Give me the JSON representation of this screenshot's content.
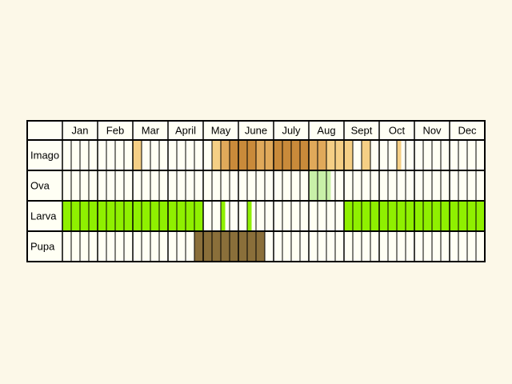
{
  "months": [
    "Jan",
    "Feb",
    "Mar",
    "April",
    "May",
    "June",
    "July",
    "Aug",
    "Sept",
    "Oct",
    "Nov",
    "Dec"
  ],
  "cells_per_month": 4,
  "colors": {
    "background": "#fcf8e8",
    "cell_empty": "#fffff4",
    "grid": "#000000",
    "imago_light": "#f5cf85",
    "imago_medium": "#e0a95a",
    "imago_dark": "#c98a3a",
    "ova": "#c8f0a8",
    "larva": "#8ff000",
    "pupa": "#8a6f3a"
  },
  "rows": [
    {
      "label": "Imago",
      "fills": [
        {
          "from": 8.0,
          "to": 9.0,
          "shade": "imago_light"
        },
        {
          "from": 17.0,
          "to": 18.0,
          "shade": "imago_light"
        },
        {
          "from": 18.0,
          "to": 19.0,
          "shade": "imago_medium"
        },
        {
          "from": 19.0,
          "to": 22.0,
          "shade": "imago_dark"
        },
        {
          "from": 22.0,
          "to": 24.0,
          "shade": "imago_medium"
        },
        {
          "from": 24.0,
          "to": 28.0,
          "shade": "imago_dark"
        },
        {
          "from": 28.0,
          "to": 30.0,
          "shade": "imago_medium"
        },
        {
          "from": 30.0,
          "to": 33.0,
          "shade": "imago_light"
        },
        {
          "from": 34.0,
          "to": 35.0,
          "shade": "imago_light"
        },
        {
          "from": 38.0,
          "to": 38.5,
          "shade": "imago_light"
        }
      ]
    },
    {
      "label": "Ova",
      "fills": [
        {
          "from": 28.0,
          "to": 29.0,
          "shade": "ova"
        },
        {
          "from": 29.0,
          "to": 30.0,
          "shade": "ova"
        },
        {
          "from": 30.0,
          "to": 30.5,
          "shade": "ova"
        }
      ]
    },
    {
      "label": "Larva",
      "fills": [
        {
          "from": 0,
          "to": 16,
          "shade": "larva"
        },
        {
          "from": 18.0,
          "to": 18.5,
          "shade": "larva"
        },
        {
          "from": 21.0,
          "to": 21.5,
          "shade": "larva"
        },
        {
          "from": 32,
          "to": 48,
          "shade": "larva"
        }
      ]
    },
    {
      "label": "Pupa",
      "fills": [
        {
          "from": 15.0,
          "to": 23.0,
          "shade": "pupa"
        }
      ]
    }
  ]
}
